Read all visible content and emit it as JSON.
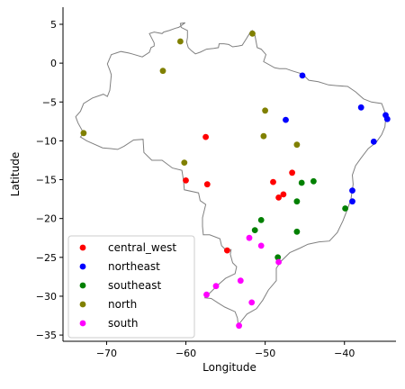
{
  "chart_data": {
    "type": "scatter",
    "xlabel": "Longitude",
    "ylabel": "Latitude",
    "xlim": [
      -75.5,
      -33.5
    ],
    "ylim": [
      -35.8,
      7.2
    ],
    "xticks": [
      -70,
      -60,
      -50,
      -40
    ],
    "yticks": [
      5,
      0,
      -5,
      -10,
      -15,
      -20,
      -25,
      -30,
      -35
    ],
    "tick_labels_x": [
      "−70",
      "−60",
      "−50",
      "−40"
    ],
    "tick_labels_y": [
      "5",
      "0",
      "−5",
      "−10",
      "−15",
      "−20",
      "−25",
      "−30",
      "−35"
    ],
    "grid": false,
    "legend_position": "lower-left",
    "outline_color": "#808080",
    "outline": [
      [
        -60.1,
        5.2
      ],
      [
        -60.7,
        5.1
      ],
      [
        -60.6,
        4.6
      ],
      [
        -59.8,
        4.2
      ],
      [
        -59.8,
        3.3
      ],
      [
        -59.9,
        2.7
      ],
      [
        -59.7,
        2.0
      ],
      [
        -59.3,
        1.6
      ],
      [
        -58.8,
        1.2
      ],
      [
        -58.2,
        1.4
      ],
      [
        -57.4,
        1.8
      ],
      [
        -56.5,
        1.9
      ],
      [
        -55.9,
        2.0
      ],
      [
        -55.8,
        2.5
      ],
      [
        -55.2,
        2.5
      ],
      [
        -54.6,
        2.4
      ],
      [
        -54.1,
        2.1
      ],
      [
        -53.4,
        2.2
      ],
      [
        -52.9,
        2.3
      ],
      [
        -52.4,
        3.1
      ],
      [
        -51.8,
        4.1
      ],
      [
        -51.6,
        4.2
      ],
      [
        -51.3,
        3.6
      ],
      [
        -51.0,
        2.0
      ],
      [
        -50.5,
        1.8
      ],
      [
        -49.9,
        1.1
      ],
      [
        -50.2,
        0.2
      ],
      [
        -48.8,
        -0.6
      ],
      [
        -48.2,
        -0.7
      ],
      [
        -47.4,
        -0.7
      ],
      [
        -46.6,
        -1.0
      ],
      [
        -45.3,
        -1.4
      ],
      [
        -44.5,
        -2.2
      ],
      [
        -43.3,
        -2.4
      ],
      [
        -42.0,
        -2.8
      ],
      [
        -41.0,
        -2.9
      ],
      [
        -39.6,
        -3.0
      ],
      [
        -38.6,
        -3.7
      ],
      [
        -37.6,
        -4.6
      ],
      [
        -36.6,
        -5.0
      ],
      [
        -35.3,
        -5.2
      ],
      [
        -34.9,
        -6.3
      ],
      [
        -34.8,
        -7.2
      ],
      [
        -34.9,
        -8.2
      ],
      [
        -35.3,
        -9.2
      ],
      [
        -36.0,
        -10.2
      ],
      [
        -37.0,
        -11.0
      ],
      [
        -37.9,
        -12.2
      ],
      [
        -38.6,
        -13.2
      ],
      [
        -39.0,
        -14.4
      ],
      [
        -38.9,
        -15.6
      ],
      [
        -39.2,
        -17.6
      ],
      [
        -39.7,
        -19.0
      ],
      [
        -40.2,
        -20.3
      ],
      [
        -40.9,
        -21.8
      ],
      [
        -41.9,
        -22.9
      ],
      [
        -43.2,
        -23.0
      ],
      [
        -44.6,
        -23.3
      ],
      [
        -45.6,
        -23.8
      ],
      [
        -46.9,
        -24.4
      ],
      [
        -48.0,
        -25.5
      ],
      [
        -48.6,
        -26.4
      ],
      [
        -48.6,
        -28.0
      ],
      [
        -49.6,
        -29.2
      ],
      [
        -50.3,
        -30.5
      ],
      [
        -51.1,
        -31.6
      ],
      [
        -52.3,
        -32.3
      ],
      [
        -53.4,
        -33.7
      ],
      [
        -53.5,
        -32.8
      ],
      [
        -53.8,
        -32.0
      ],
      [
        -55.1,
        -31.4
      ],
      [
        -55.9,
        -30.9
      ],
      [
        -56.8,
        -30.3
      ],
      [
        -57.6,
        -30.2
      ],
      [
        -56.9,
        -29.5
      ],
      [
        -55.9,
        -28.5
      ],
      [
        -55.0,
        -27.7
      ],
      [
        -53.8,
        -27.1
      ],
      [
        -53.6,
        -26.2
      ],
      [
        -54.1,
        -25.7
      ],
      [
        -54.4,
        -24.6
      ],
      [
        -54.3,
        -24.0
      ],
      [
        -55.0,
        -24.0
      ],
      [
        -55.5,
        -23.5
      ],
      [
        -55.7,
        -22.6
      ],
      [
        -57.0,
        -22.1
      ],
      [
        -57.8,
        -22.1
      ],
      [
        -57.9,
        -21.0
      ],
      [
        -57.9,
        -19.9
      ],
      [
        -57.5,
        -18.2
      ],
      [
        -58.2,
        -17.7
      ],
      [
        -58.4,
        -16.7
      ],
      [
        -60.2,
        -16.3
      ],
      [
        -60.3,
        -15.1
      ],
      [
        -60.5,
        -13.8
      ],
      [
        -61.7,
        -13.5
      ],
      [
        -63.0,
        -12.5
      ],
      [
        -64.3,
        -12.5
      ],
      [
        -65.3,
        -11.5
      ],
      [
        -65.4,
        -9.8
      ],
      [
        -66.6,
        -9.9
      ],
      [
        -67.8,
        -10.7
      ],
      [
        -68.6,
        -11.1
      ],
      [
        -69.5,
        -11.0
      ],
      [
        -70.5,
        -10.9
      ],
      [
        -72.5,
        -10.0
      ],
      [
        -73.3,
        -9.5
      ],
      [
        -72.9,
        -9.0
      ],
      [
        -73.6,
        -7.7
      ],
      [
        -73.9,
        -6.9
      ],
      [
        -73.3,
        -6.2
      ],
      [
        -72.9,
        -5.2
      ],
      [
        -71.8,
        -4.5
      ],
      [
        -70.4,
        -4.0
      ],
      [
        -69.9,
        -4.3
      ],
      [
        -69.6,
        -3.5
      ],
      [
        -69.4,
        -1.5
      ],
      [
        -69.6,
        -0.9
      ],
      [
        -69.9,
        -0.1
      ],
      [
        -69.4,
        1.1
      ],
      [
        -68.2,
        1.5
      ],
      [
        -67.2,
        1.3
      ],
      [
        -66.8,
        1.2
      ],
      [
        -65.5,
        0.8
      ],
      [
        -64.6,
        1.4
      ],
      [
        -64.4,
        2.0
      ],
      [
        -64.0,
        2.2
      ],
      [
        -64.0,
        2.6
      ],
      [
        -64.6,
        3.8
      ],
      [
        -64.0,
        4.0
      ],
      [
        -63.0,
        3.8
      ],
      [
        -62.8,
        4.0
      ],
      [
        -62.1,
        4.2
      ],
      [
        -61.3,
        4.5
      ],
      [
        -60.9,
        4.6
      ],
      [
        -60.1,
        5.2
      ]
    ],
    "series": [
      {
        "name": "central_west",
        "color": "#ff0000",
        "points": [
          [
            -57.5,
            -9.5
          ],
          [
            -60.0,
            -15.1
          ],
          [
            -57.3,
            -15.6
          ],
          [
            -49.0,
            -15.3
          ],
          [
            -46.6,
            -14.1
          ],
          [
            -47.7,
            -16.9
          ],
          [
            -48.3,
            -17.3
          ],
          [
            -54.8,
            -24.1
          ]
        ]
      },
      {
        "name": "northeast",
        "color": "#0000ff",
        "points": [
          [
            -45.3,
            -1.6
          ],
          [
            -47.4,
            -7.3
          ],
          [
            -37.9,
            -5.7
          ],
          [
            -34.8,
            -6.7
          ],
          [
            -34.6,
            -7.2
          ],
          [
            -36.3,
            -10.1
          ],
          [
            -39.0,
            -16.4
          ],
          [
            -39.0,
            -17.8
          ]
        ]
      },
      {
        "name": "southeast",
        "color": "#008000",
        "points": [
          [
            -43.9,
            -15.2
          ],
          [
            -45.4,
            -15.4
          ],
          [
            -46.0,
            -17.8
          ],
          [
            -39.9,
            -18.7
          ],
          [
            -50.5,
            -20.2
          ],
          [
            -51.3,
            -21.5
          ],
          [
            -46.0,
            -21.7
          ],
          [
            -48.4,
            -25.0
          ]
        ]
      },
      {
        "name": "north",
        "color": "#808000",
        "points": [
          [
            -51.6,
            3.8
          ],
          [
            -60.7,
            2.8
          ],
          [
            -62.9,
            -1.0
          ],
          [
            -50.0,
            -6.1
          ],
          [
            -50.2,
            -9.4
          ],
          [
            -46.0,
            -10.5
          ],
          [
            -72.9,
            -9.0
          ],
          [
            -60.2,
            -12.8
          ]
        ]
      },
      {
        "name": "south",
        "color": "#ff00ff",
        "points": [
          [
            -52.0,
            -22.5
          ],
          [
            -50.5,
            -23.5
          ],
          [
            -48.3,
            -25.6
          ],
          [
            -56.2,
            -28.7
          ],
          [
            -53.1,
            -28.0
          ],
          [
            -57.4,
            -29.8
          ],
          [
            -51.7,
            -30.8
          ],
          [
            -53.3,
            -33.8
          ]
        ]
      }
    ]
  }
}
